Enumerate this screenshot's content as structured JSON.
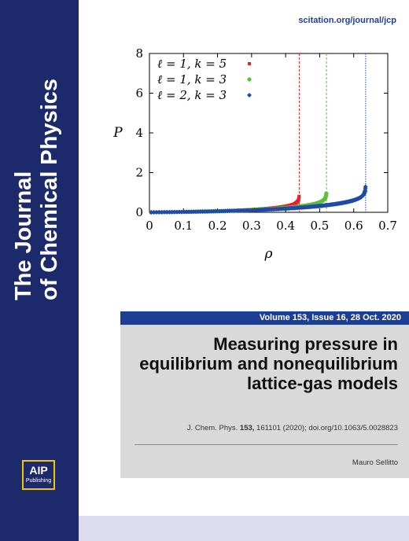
{
  "journal": {
    "title_line1": "The Journal",
    "title_line2": "of Chemical Physics",
    "url": "scitation.org/journal/jcp",
    "publisher_logo": "AIP",
    "publisher_name": "Publishing"
  },
  "issue": {
    "volume_text": "Volume 153, Issue 16, 28 Oct. 2020"
  },
  "article": {
    "title": "Measuring pressure in equilibrium and nonequilibrium lattice-gas models",
    "citation_prefix": "J. Chem. Phys. ",
    "citation_volume": "153,",
    "citation_suffix": " 161101 (2020); doi.org/10.1063/5.0028823",
    "author": "Mauro Sellitto"
  },
  "colors": {
    "sidebar": "#1c2a6b",
    "series_red": "#e8202a",
    "series_green": "#5fbe3c",
    "series_blue": "#1f4aa8",
    "logo_border": "#f5c400"
  },
  "chart_data": {
    "type": "scatter",
    "xlabel": "ρ",
    "ylabel": "P",
    "xlim": [
      0,
      0.7
    ],
    "ylim": [
      0,
      8
    ],
    "xticks": [
      "0",
      "0.1",
      "0.2",
      "0.3",
      "0.4",
      "0.5",
      "0.6",
      "0.7"
    ],
    "yticks": [
      "0",
      "2",
      "4",
      "6",
      "8"
    ],
    "legend_position": "top-left",
    "grid": false,
    "series": [
      {
        "name": "ℓ = 1, k = 5",
        "color": "#e8202a",
        "marker": "square",
        "rho_max": 0.44
      },
      {
        "name": "ℓ = 1, k = 3",
        "color": "#5fbe3c",
        "marker": "circle",
        "rho_max": 0.52
      },
      {
        "name": "ℓ = 2, k = 3",
        "color": "#1f4aa8",
        "marker": "diamond",
        "rho_max": 0.635
      }
    ]
  }
}
